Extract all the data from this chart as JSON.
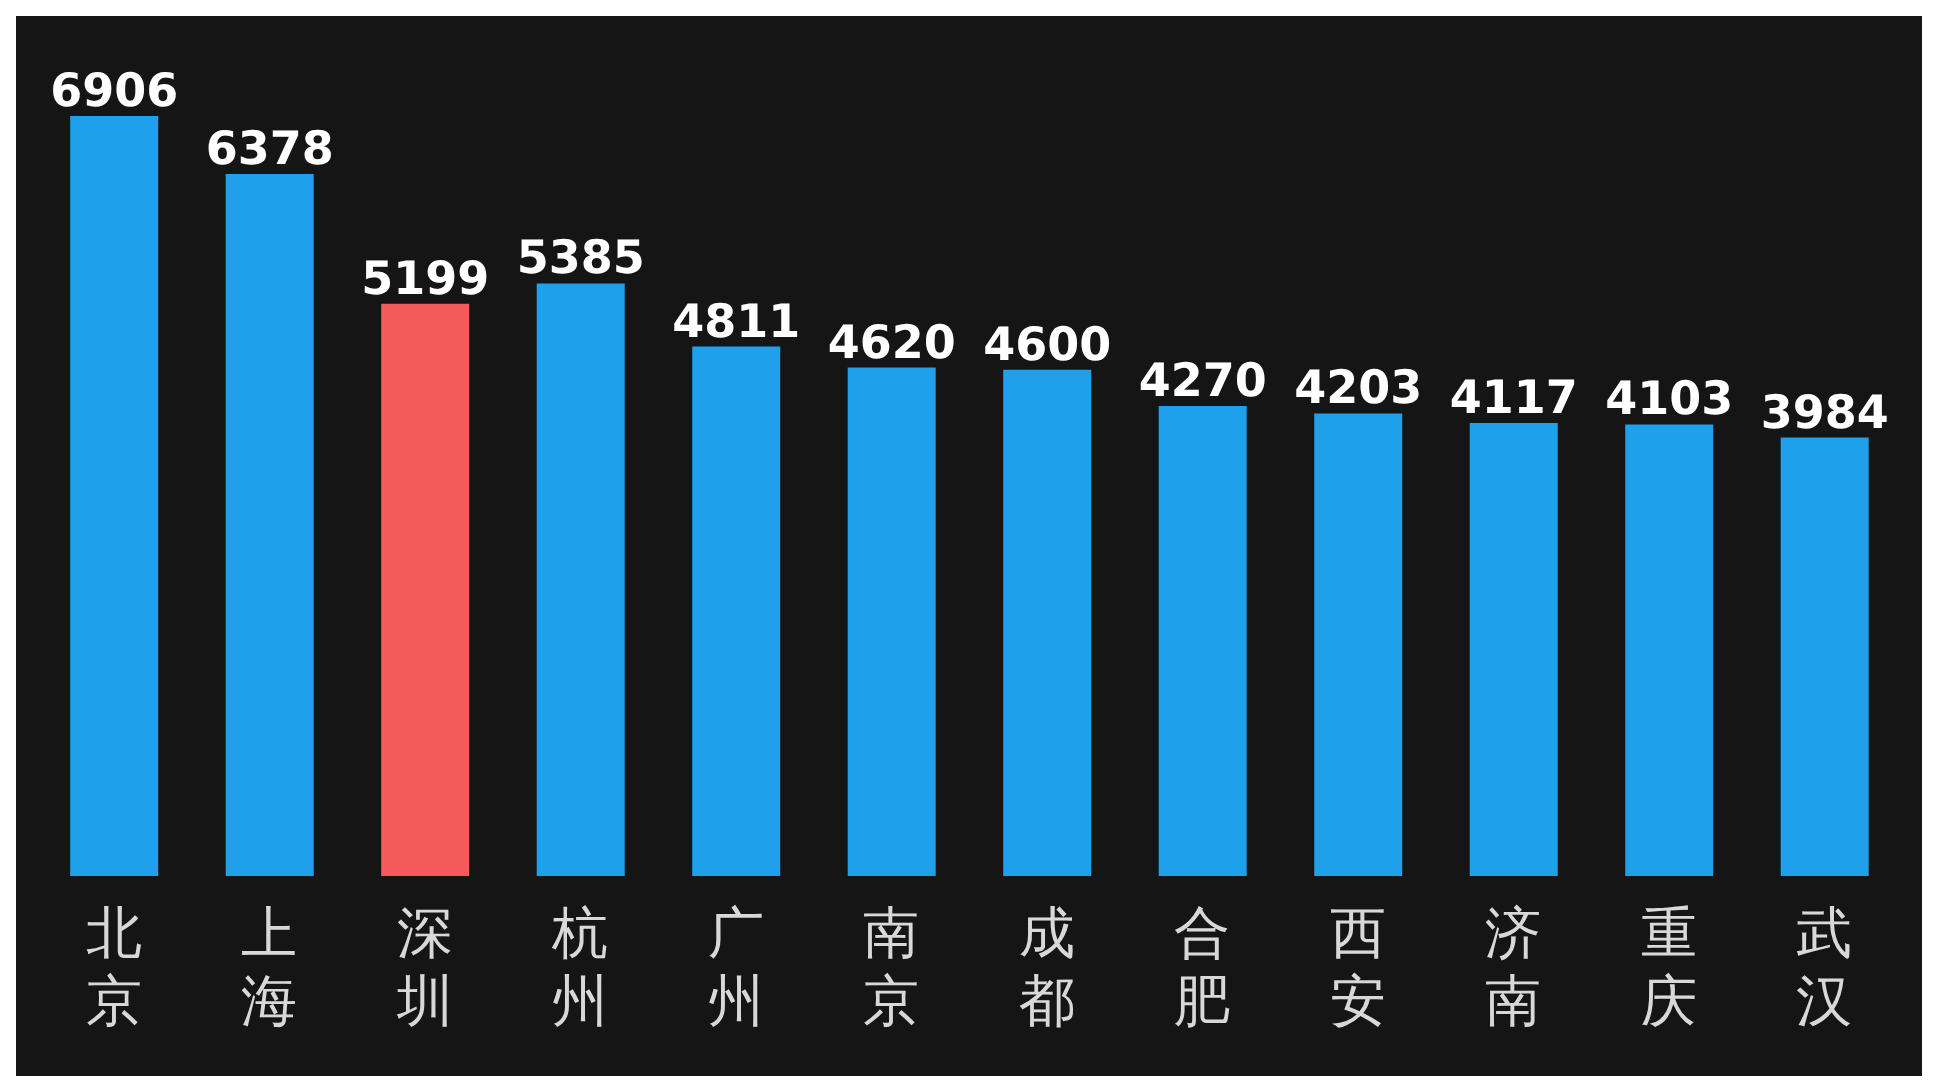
{
  "chart_data": {
    "type": "bar",
    "categories": [
      "北京",
      "上海",
      "深圳",
      "杭州",
      "广州",
      "南京",
      "成都",
      "合肥",
      "西安",
      "济南",
      "重庆",
      "武汉"
    ],
    "values": [
      6906,
      6378,
      5199,
      5385,
      4811,
      4620,
      4600,
      4270,
      4203,
      4117,
      4103,
      3984
    ],
    "colors": [
      "#1fa0ea",
      "#1fa0ea",
      "#f55a5a",
      "#1fa0ea",
      "#1fa0ea",
      "#1fa0ea",
      "#1fa0ea",
      "#1fa0ea",
      "#1fa0ea",
      "#1fa0ea",
      "#1fa0ea",
      "#1fa0ea"
    ],
    "data_labels": true,
    "grid": false,
    "legend": false
  }
}
